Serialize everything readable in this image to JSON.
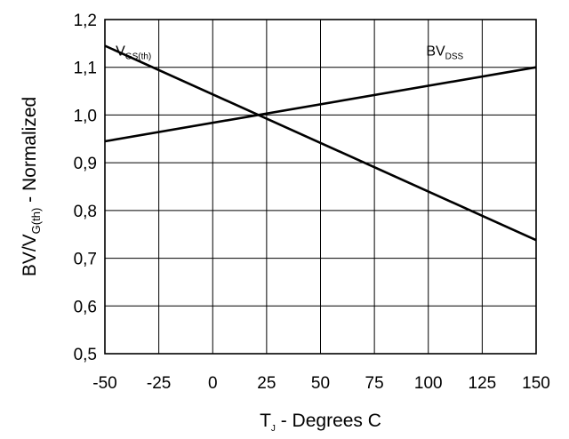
{
  "chart_data": {
    "type": "line",
    "xlabel": {
      "main": "T",
      "sub": "J",
      "rest": " - Degrees C"
    },
    "ylabel": {
      "main": "BV/V",
      "sub": "G(th)",
      "rest": " - Normalized"
    },
    "xlim": [
      -50,
      150
    ],
    "ylim": [
      0.5,
      1.2
    ],
    "x_ticks": [
      -50,
      -25,
      0,
      25,
      50,
      75,
      100,
      125,
      150
    ],
    "x_tick_labels": [
      "-50",
      "-25",
      "0",
      "25",
      "50",
      "75",
      "100",
      "125",
      "150"
    ],
    "y_ticks": [
      0.5,
      0.6,
      0.7,
      0.8,
      0.9,
      1.0,
      1.1,
      1.2
    ],
    "y_tick_labels": [
      "0,5",
      "0,6",
      "0,7",
      "0,8",
      "0,9",
      "1,0",
      "1,1",
      "1,2"
    ],
    "grid": true,
    "series": [
      {
        "id": "vgs",
        "label_main": "V",
        "label_sub": "GS(th)",
        "x": [
          -50,
          150
        ],
        "y": [
          1.145,
          0.738
        ],
        "label_at": [
          -45,
          1.125
        ]
      },
      {
        "id": "bvdss",
        "label_main": "BV",
        "label_sub": "DSS",
        "x": [
          -50,
          150
        ],
        "y": [
          0.945,
          1.1
        ],
        "label_at": [
          99,
          1.125
        ]
      }
    ]
  }
}
